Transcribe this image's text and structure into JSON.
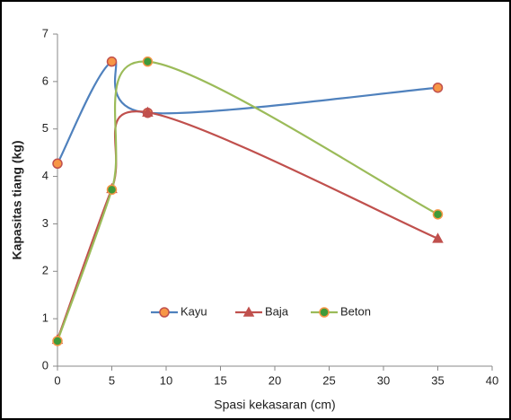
{
  "chart_data": {
    "type": "line",
    "smooth": true,
    "x_label": "Spasi kekasaran (cm)",
    "y_label": "Kapasitas tiang (kg)",
    "xlim": [
      0,
      40
    ],
    "xticks": [
      0,
      5,
      10,
      15,
      20,
      25,
      30,
      35,
      40
    ],
    "ylim": [
      0,
      7
    ],
    "yticks": [
      0,
      1,
      2,
      3,
      4,
      5,
      6,
      7
    ],
    "grid": false,
    "legend": "inside-bottom",
    "series": [
      {
        "name": "Kayu",
        "color": "#4f81bd",
        "marker": "circle",
        "marker_fill": "#f79646",
        "marker_edge": "#c0504d",
        "x": [
          0,
          5,
          8.3,
          35
        ],
        "values": [
          4.27,
          6.42,
          5.34,
          5.87
        ]
      },
      {
        "name": "Baja",
        "color": "#c0504d",
        "marker": "triangle",
        "marker_fill": "#c0504d",
        "marker_edge": "#c0504d",
        "x": [
          0,
          5,
          8.3,
          35
        ],
        "values": [
          0.56,
          3.74,
          5.35,
          2.69
        ]
      },
      {
        "name": "Beton",
        "color": "#9bbb59",
        "marker": "circle",
        "marker_fill": "#3f9a3a",
        "marker_edge": "#f79646",
        "x": [
          0,
          5,
          8.3,
          35
        ],
        "values": [
          0.53,
          3.72,
          6.42,
          3.2
        ]
      }
    ]
  }
}
